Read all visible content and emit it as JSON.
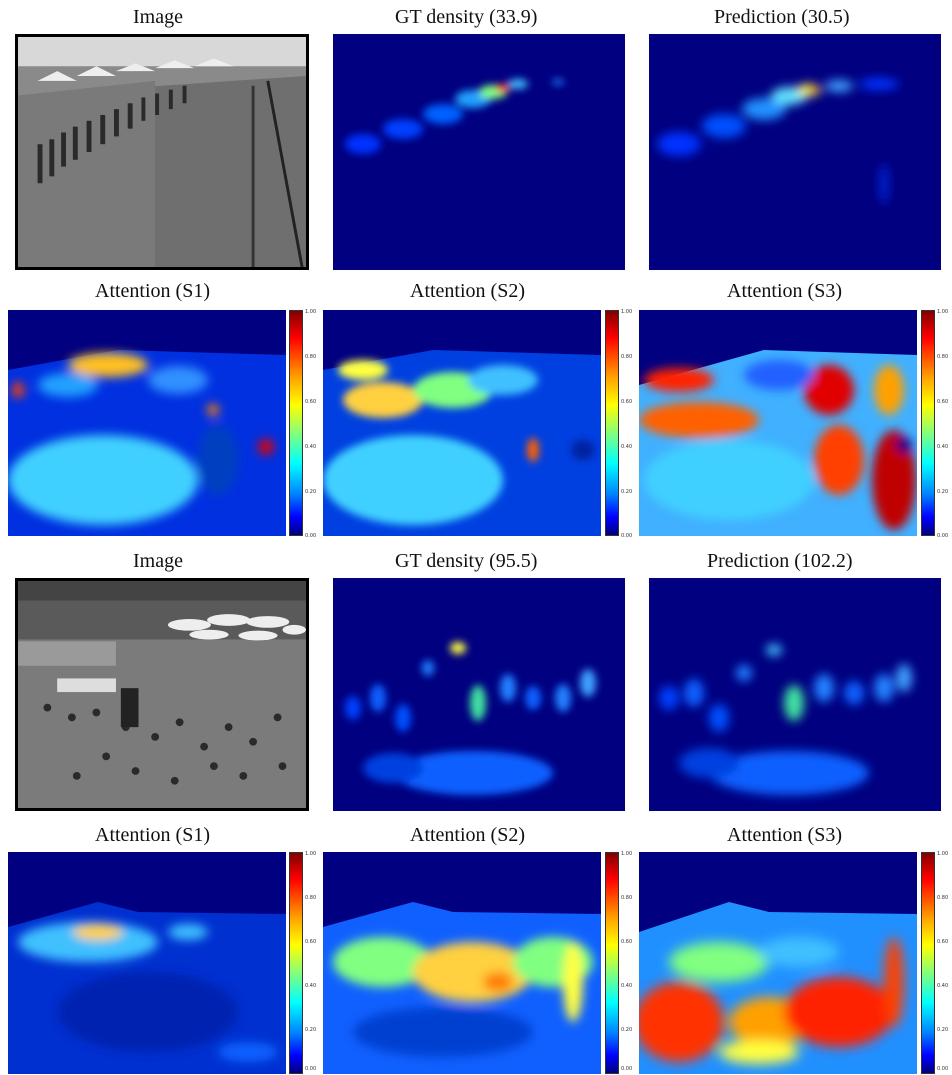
{
  "titles": {
    "r1c1": "Image",
    "r1c2": "GT density (33.9)",
    "r1c3": "Prediction (30.5)",
    "r2c1": "Attention (S1)",
    "r2c2": "Attention (S2)",
    "r2c3": "Attention (S3)",
    "r3c1": "Image",
    "r3c2": "GT density (95.5)",
    "r3c3": "Prediction (102.2)",
    "r4c1": "Attention (S1)",
    "r4c2": "Attention (S2)",
    "r4c3": "Attention (S3)"
  },
  "colorbar_ticks": [
    "1.00",
    "0.80",
    "0.60",
    "0.40",
    "0.20",
    "0.00"
  ],
  "colors": {
    "background_blue": "#000080",
    "cyan": "#40d0ff",
    "yellow": "#ffff40",
    "red": "#e00000"
  }
}
